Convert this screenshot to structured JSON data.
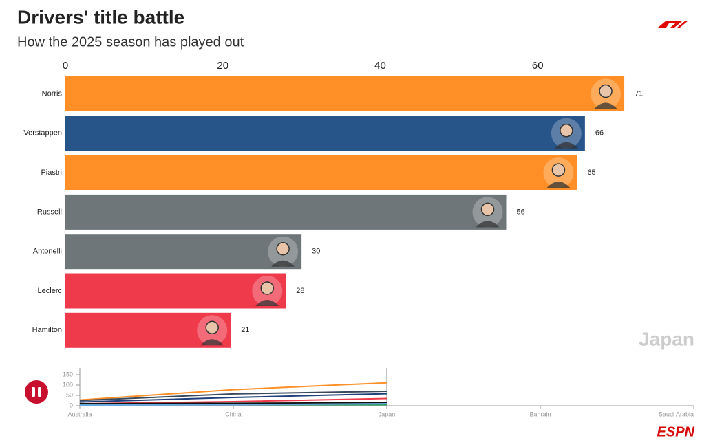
{
  "chart_data": [
    {
      "type": "bar",
      "orientation": "horizontal",
      "title": "Drivers' title battle",
      "subtitle": "How the 2025 season has played out",
      "annotation": "Japan",
      "categories": [
        "Norris",
        "Verstappen",
        "Piastri",
        "Russell",
        "Antonelli",
        "Leclerc",
        "Hamilton"
      ],
      "values": [
        71,
        66,
        65,
        56,
        30,
        28,
        21
      ],
      "colors": [
        "#ff8f26",
        "#27558a",
        "#ff8f26",
        "#6f7679",
        "#6f7679",
        "#ef3a4c",
        "#ef3a4c"
      ],
      "xlim": [
        0,
        80
      ],
      "xticks": [
        0,
        20,
        40,
        60
      ],
      "grid": false
    },
    {
      "type": "line",
      "categories": [
        "Australia",
        "China",
        "Japan",
        "Bahrain",
        "Saudi Arabia"
      ],
      "series": [
        {
          "color": "#ff8f26",
          "values": [
            28,
            78,
            111,
            null,
            null
          ]
        },
        {
          "color": "#3a4a5c",
          "values": [
            25,
            57,
            70,
            null,
            null
          ]
        },
        {
          "color": "#1f3f7a",
          "values": [
            18,
            40,
            58,
            null,
            null
          ]
        },
        {
          "color": "#ef3a4c",
          "values": [
            10,
            20,
            35,
            null,
            null
          ]
        },
        {
          "color": "#111111",
          "values": [
            10,
            12,
            15,
            null,
            null
          ]
        },
        {
          "color": "#2aa36b",
          "values": [
            5,
            5,
            5,
            null,
            null
          ]
        },
        {
          "color": "#6aa7e0",
          "values": [
            3,
            5,
            10,
            null,
            null
          ]
        }
      ],
      "ylim": [
        0,
        175
      ],
      "yticks": [
        0,
        50,
        100,
        150
      ],
      "grid": false
    }
  ],
  "brand": "ESPN"
}
